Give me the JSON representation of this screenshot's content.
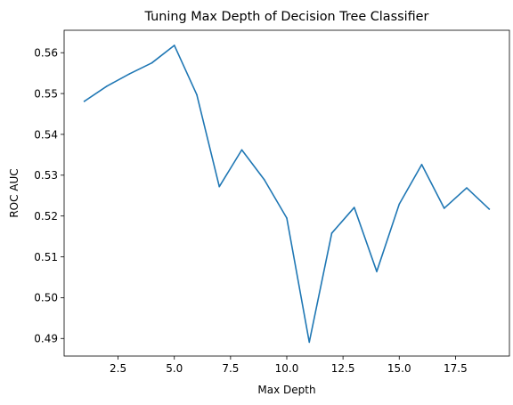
{
  "chart_data": {
    "type": "line",
    "title": "Tuning Max Depth of Decision Tree Classifier",
    "xlabel": "Max Depth",
    "ylabel": "ROC AUC",
    "xlim": [
      0.1,
      19.9
    ],
    "ylim": [
      0.4857,
      0.5655
    ],
    "xticks": [
      2.5,
      5.0,
      7.5,
      10.0,
      12.5,
      15.0,
      17.5
    ],
    "xtick_labels": [
      "2.5",
      "5.0",
      "7.5",
      "10.0",
      "12.5",
      "15.0",
      "17.5"
    ],
    "yticks": [
      0.49,
      0.5,
      0.51,
      0.52,
      0.53,
      0.54,
      0.55,
      0.56
    ],
    "ytick_labels": [
      "0.49",
      "0.50",
      "0.51",
      "0.52",
      "0.53",
      "0.54",
      "0.55",
      "0.56"
    ],
    "grid": false,
    "series": [
      {
        "color": "#1f77b4",
        "x": [
          1,
          2,
          3,
          4,
          5,
          6,
          7,
          8,
          9,
          10,
          11,
          12,
          13,
          14,
          15,
          16,
          17,
          18,
          19
        ],
        "y": [
          0.5481,
          0.5518,
          0.5548,
          0.5575,
          0.5618,
          0.5497,
          0.5272,
          0.5362,
          0.5289,
          0.5195,
          0.4891,
          0.5158,
          0.5221,
          0.5064,
          0.5229,
          0.5326,
          0.5219,
          0.5269,
          0.5217
        ]
      }
    ]
  }
}
